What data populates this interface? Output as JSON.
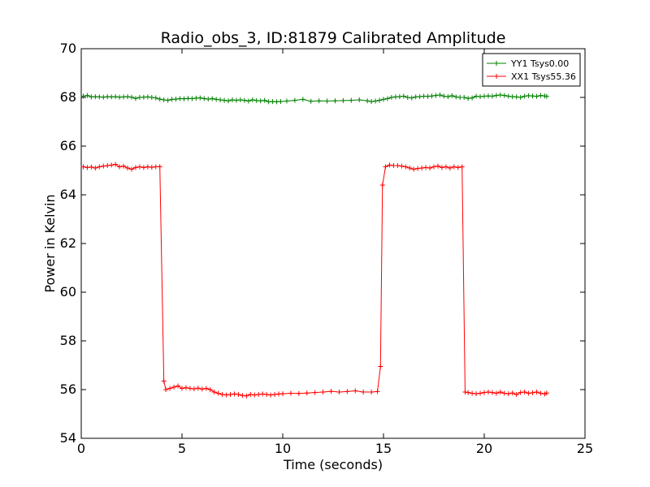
{
  "chart_data": {
    "type": "line",
    "title": "Radio_obs_3, ID:81879 Calibrated Amplitude",
    "xlabel": "Time (seconds)",
    "ylabel": "Power in Kelvin",
    "xlim": [
      0,
      25
    ],
    "ylim": [
      54,
      70
    ],
    "xticks": [
      0,
      5,
      10,
      15,
      20,
      25
    ],
    "yticks": [
      54,
      56,
      58,
      60,
      62,
      64,
      66,
      68,
      70
    ],
    "grid": false,
    "legend_position": "top-right",
    "marker": "+",
    "series": [
      {
        "name": "YY1 Tsys0.00",
        "color": "#008000",
        "points": [
          [
            0.1,
            68.05
          ],
          [
            0.3,
            68.08
          ],
          [
            0.5,
            68.02
          ],
          [
            0.7,
            68.03
          ],
          [
            0.9,
            68.02
          ],
          [
            1.1,
            68.01
          ],
          [
            1.3,
            68.03
          ],
          [
            1.5,
            68.02
          ],
          [
            1.7,
            68.03
          ],
          [
            1.9,
            68.01
          ],
          [
            2.1,
            68.02
          ],
          [
            2.3,
            68.03
          ],
          [
            2.5,
            68.01
          ],
          [
            2.7,
            67.96
          ],
          [
            2.9,
            68.0
          ],
          [
            3.1,
            68.01
          ],
          [
            3.3,
            68.02
          ],
          [
            3.5,
            68.0
          ],
          [
            3.7,
            67.98
          ],
          [
            3.9,
            67.93
          ],
          [
            4.1,
            67.9
          ],
          [
            4.3,
            67.88
          ],
          [
            4.5,
            67.92
          ],
          [
            4.7,
            67.93
          ],
          [
            4.9,
            67.95
          ],
          [
            5.1,
            67.94
          ],
          [
            5.3,
            67.96
          ],
          [
            5.5,
            67.95
          ],
          [
            5.7,
            67.97
          ],
          [
            5.9,
            67.98
          ],
          [
            6.1,
            67.95
          ],
          [
            6.3,
            67.93
          ],
          [
            6.5,
            67.95
          ],
          [
            6.7,
            67.92
          ],
          [
            6.9,
            67.9
          ],
          [
            7.1,
            67.88
          ],
          [
            7.3,
            67.86
          ],
          [
            7.5,
            67.9
          ],
          [
            7.7,
            67.88
          ],
          [
            7.9,
            67.9
          ],
          [
            8.1,
            67.88
          ],
          [
            8.3,
            67.85
          ],
          [
            8.5,
            67.9
          ],
          [
            8.7,
            67.87
          ],
          [
            8.9,
            67.86
          ],
          [
            9.1,
            67.88
          ],
          [
            9.3,
            67.82
          ],
          [
            9.5,
            67.83
          ],
          [
            9.7,
            67.82
          ],
          [
            9.9,
            67.83
          ],
          [
            10.2,
            67.85
          ],
          [
            10.6,
            67.88
          ],
          [
            11.0,
            67.92
          ],
          [
            11.4,
            67.84
          ],
          [
            11.8,
            67.86
          ],
          [
            12.2,
            67.85
          ],
          [
            12.6,
            67.86
          ],
          [
            13.0,
            67.87
          ],
          [
            13.4,
            67.88
          ],
          [
            13.8,
            67.9
          ],
          [
            14.2,
            67.86
          ],
          [
            14.4,
            67.83
          ],
          [
            14.6,
            67.85
          ],
          [
            14.8,
            67.88
          ],
          [
            15.0,
            67.92
          ],
          [
            15.2,
            67.95
          ],
          [
            15.4,
            68.0
          ],
          [
            15.6,
            68.02
          ],
          [
            15.8,
            68.03
          ],
          [
            16.0,
            68.05
          ],
          [
            16.2,
            68.0
          ],
          [
            16.4,
            67.98
          ],
          [
            16.6,
            68.02
          ],
          [
            16.8,
            68.03
          ],
          [
            17.0,
            68.05
          ],
          [
            17.2,
            68.04
          ],
          [
            17.4,
            68.06
          ],
          [
            17.6,
            68.08
          ],
          [
            17.8,
            68.1
          ],
          [
            18.0,
            68.05
          ],
          [
            18.2,
            68.03
          ],
          [
            18.4,
            68.07
          ],
          [
            18.6,
            68.02
          ],
          [
            18.8,
            68.0
          ],
          [
            19.0,
            68.0
          ],
          [
            19.2,
            67.96
          ],
          [
            19.4,
            67.98
          ],
          [
            19.6,
            68.05
          ],
          [
            19.8,
            68.03
          ],
          [
            20.0,
            68.05
          ],
          [
            20.2,
            68.06
          ],
          [
            20.4,
            68.05
          ],
          [
            20.6,
            68.08
          ],
          [
            20.8,
            68.1
          ],
          [
            21.0,
            68.08
          ],
          [
            21.2,
            68.05
          ],
          [
            21.4,
            68.03
          ],
          [
            21.6,
            68.02
          ],
          [
            21.8,
            68.0
          ],
          [
            22.0,
            68.05
          ],
          [
            22.2,
            68.07
          ],
          [
            22.4,
            68.06
          ],
          [
            22.6,
            68.04
          ],
          [
            22.8,
            68.08
          ],
          [
            23.0,
            68.06
          ],
          [
            23.1,
            68.04
          ]
        ]
      },
      {
        "name": "XX1 Tsys55.36",
        "color": "#ff0000",
        "points": [
          [
            0.1,
            65.15
          ],
          [
            0.3,
            65.12
          ],
          [
            0.5,
            65.14
          ],
          [
            0.7,
            65.1
          ],
          [
            0.9,
            65.15
          ],
          [
            1.1,
            65.18
          ],
          [
            1.3,
            65.2
          ],
          [
            1.5,
            65.22
          ],
          [
            1.7,
            65.25
          ],
          [
            1.9,
            65.15
          ],
          [
            2.1,
            65.18
          ],
          [
            2.3,
            65.1
          ],
          [
            2.5,
            65.05
          ],
          [
            2.7,
            65.12
          ],
          [
            2.9,
            65.15
          ],
          [
            3.1,
            65.12
          ],
          [
            3.3,
            65.15
          ],
          [
            3.5,
            65.13
          ],
          [
            3.7,
            65.15
          ],
          [
            3.9,
            65.16
          ],
          [
            4.1,
            56.35
          ],
          [
            4.2,
            56.0
          ],
          [
            4.4,
            56.05
          ],
          [
            4.6,
            56.1
          ],
          [
            4.8,
            56.15
          ],
          [
            5.0,
            56.05
          ],
          [
            5.2,
            56.08
          ],
          [
            5.4,
            56.05
          ],
          [
            5.6,
            56.03
          ],
          [
            5.8,
            56.06
          ],
          [
            6.0,
            56.02
          ],
          [
            6.2,
            56.05
          ],
          [
            6.4,
            56.0
          ],
          [
            6.6,
            55.9
          ],
          [
            6.8,
            55.85
          ],
          [
            7.0,
            55.8
          ],
          [
            7.2,
            55.78
          ],
          [
            7.4,
            55.8
          ],
          [
            7.6,
            55.82
          ],
          [
            7.8,
            55.8
          ],
          [
            8.0,
            55.76
          ],
          [
            8.2,
            55.74
          ],
          [
            8.4,
            55.8
          ],
          [
            8.6,
            55.78
          ],
          [
            8.8,
            55.8
          ],
          [
            9.0,
            55.82
          ],
          [
            9.2,
            55.8
          ],
          [
            9.4,
            55.78
          ],
          [
            9.6,
            55.8
          ],
          [
            9.8,
            55.82
          ],
          [
            10.0,
            55.83
          ],
          [
            10.4,
            55.85
          ],
          [
            10.8,
            55.84
          ],
          [
            11.2,
            55.86
          ],
          [
            11.6,
            55.88
          ],
          [
            12.0,
            55.9
          ],
          [
            12.4,
            55.93
          ],
          [
            12.8,
            55.9
          ],
          [
            13.2,
            55.92
          ],
          [
            13.6,
            55.95
          ],
          [
            14.0,
            55.9
          ],
          [
            14.4,
            55.9
          ],
          [
            14.7,
            55.92
          ],
          [
            14.85,
            56.95
          ],
          [
            14.95,
            64.4
          ],
          [
            15.1,
            65.15
          ],
          [
            15.3,
            65.22
          ],
          [
            15.5,
            65.2
          ],
          [
            15.7,
            65.2
          ],
          [
            15.9,
            65.18
          ],
          [
            16.1,
            65.15
          ],
          [
            16.3,
            65.1
          ],
          [
            16.5,
            65.05
          ],
          [
            16.7,
            65.08
          ],
          [
            16.9,
            65.1
          ],
          [
            17.1,
            65.12
          ],
          [
            17.3,
            65.1
          ],
          [
            17.5,
            65.15
          ],
          [
            17.7,
            65.18
          ],
          [
            17.9,
            65.12
          ],
          [
            18.1,
            65.15
          ],
          [
            18.3,
            65.1
          ],
          [
            18.5,
            65.15
          ],
          [
            18.7,
            65.12
          ],
          [
            18.9,
            65.15
          ],
          [
            19.05,
            55.9
          ],
          [
            19.2,
            55.88
          ],
          [
            19.4,
            55.85
          ],
          [
            19.6,
            55.83
          ],
          [
            19.8,
            55.85
          ],
          [
            20.0,
            55.88
          ],
          [
            20.2,
            55.9
          ],
          [
            20.4,
            55.88
          ],
          [
            20.6,
            55.85
          ],
          [
            20.8,
            55.9
          ],
          [
            21.0,
            55.85
          ],
          [
            21.2,
            55.83
          ],
          [
            21.4,
            55.86
          ],
          [
            21.6,
            55.8
          ],
          [
            21.8,
            55.88
          ],
          [
            22.0,
            55.9
          ],
          [
            22.2,
            55.85
          ],
          [
            22.4,
            55.87
          ],
          [
            22.6,
            55.9
          ],
          [
            22.8,
            55.85
          ],
          [
            23.0,
            55.82
          ],
          [
            23.1,
            55.86
          ]
        ]
      }
    ]
  }
}
